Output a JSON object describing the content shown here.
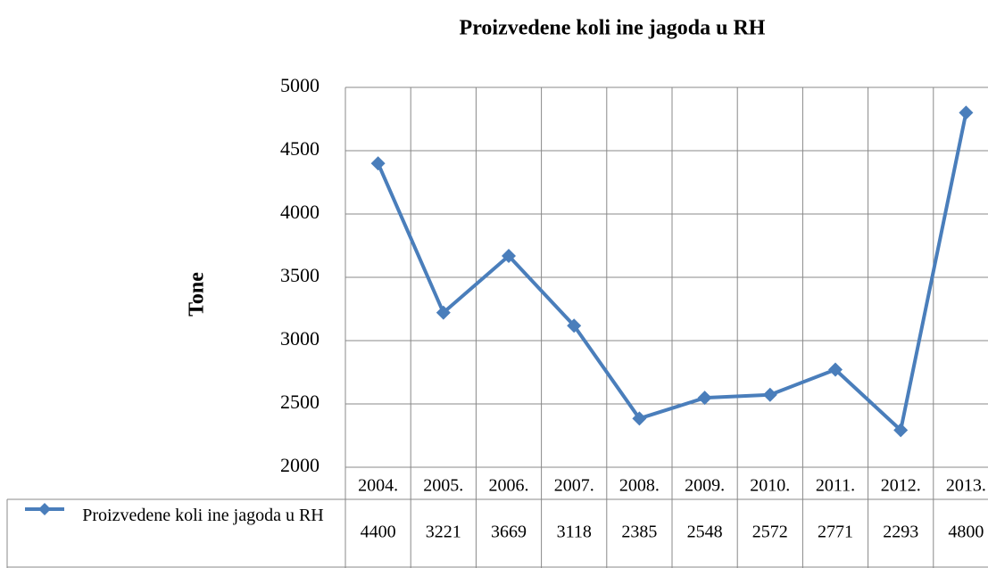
{
  "chart_data": {
    "type": "line",
    "title": "Proizvedene koli ine jagoda u RH",
    "y_label": "Tone",
    "categories": [
      "2004.",
      "2005.",
      "2006.",
      "2007.",
      "2008.",
      "2009.",
      "2010.",
      "2011.",
      "2012.",
      "2013."
    ],
    "series": [
      {
        "name": "Proizvedene koli ine jagoda u RH",
        "color": "#4a7ebb",
        "values": [
          4400,
          3221,
          3669,
          3118,
          2385,
          2548,
          2572,
          2771,
          2293,
          4800
        ]
      }
    ],
    "ylim": [
      2000,
      5000
    ],
    "yticks": [
      2000,
      2500,
      3000,
      3500,
      4000,
      4500,
      5000
    ],
    "grid": true
  }
}
